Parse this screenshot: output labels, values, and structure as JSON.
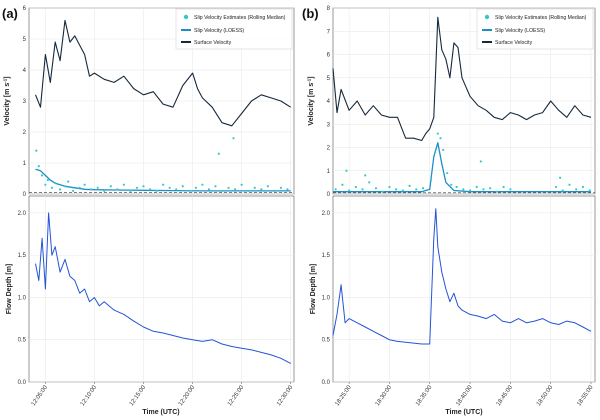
{
  "panels": [
    {
      "label": "(a)",
      "velocity_ylabel_main": "Velocity [m s",
      "velocity_ylabel_sup": "-1",
      "velocity_ylabel_end": "]",
      "depth_ylabel": "Flow Depth [m]",
      "xlabel": "Time (UTC)",
      "xticks": [
        "12:05:00",
        "12:10:00",
        "12:15:00",
        "12:20:00",
        "12:25:00",
        "12:30:00"
      ],
      "legend": [
        "Slip Velocity Estimates (Rolling Median)",
        "Slip Velocity (LOESS)",
        "Surface Velocity"
      ]
    },
    {
      "label": "(b)",
      "velocity_ylabel_main": "Velocity [m s",
      "velocity_ylabel_sup": "-1",
      "velocity_ylabel_end": "]",
      "depth_ylabel": "Flow Depth [m]",
      "xlabel": "Time (UTC)",
      "xticks": [
        "18:25:00",
        "18:30:00",
        "18:35:00",
        "18:40:00",
        "18:45:00",
        "18:50:00",
        "18:55:00"
      ],
      "legend": [
        "Slip Velocity Estimates (Rolling Median)",
        "Slip Velocity (LOESS)",
        "Surface Velocity"
      ]
    }
  ],
  "colors": {
    "surface": "#15293d",
    "loess": "#1f8ec8",
    "scatter": "#33c9c9",
    "depth": "#2255d6",
    "grid": "#e6e6e6",
    "dashed": "#333333"
  },
  "chart_data": [
    {
      "type": "line",
      "panel": "(a)",
      "xlabel": "",
      "ylabel": "Velocity [m s-1]",
      "ylim": [
        0,
        6
      ],
      "yticks": [
        0,
        1,
        2,
        3,
        4,
        5,
        6
      ],
      "xlim": [
        "12:03:20",
        "12:30:20"
      ],
      "grid": true,
      "legend_position": "top-right",
      "dashed_reference_y": 0.05,
      "series": [
        {
          "name": "Surface Velocity",
          "x": [
            "12:04:00",
            "12:04:30",
            "12:05:00",
            "12:05:30",
            "12:06:00",
            "12:06:30",
            "12:07:00",
            "12:07:30",
            "12:08:00",
            "12:08:30",
            "12:09:00",
            "12:09:30",
            "12:10:00",
            "12:11:00",
            "12:12:00",
            "12:13:00",
            "12:14:00",
            "12:15:00",
            "12:16:00",
            "12:17:00",
            "12:18:00",
            "12:19:00",
            "12:20:00",
            "12:20:30",
            "12:21:00",
            "12:22:00",
            "12:23:00",
            "12:24:00",
            "12:25:00",
            "12:26:00",
            "12:27:00",
            "12:28:00",
            "12:29:00",
            "12:30:00"
          ],
          "values": [
            3.2,
            2.8,
            4.5,
            3.6,
            4.9,
            4.3,
            5.6,
            4.9,
            5.1,
            4.8,
            4.5,
            3.8,
            3.9,
            3.7,
            3.6,
            3.8,
            3.4,
            3.2,
            3.3,
            2.9,
            2.8,
            3.5,
            3.9,
            3.4,
            3.1,
            2.8,
            2.3,
            2.2,
            2.6,
            3.0,
            3.2,
            3.1,
            3.0,
            2.8
          ]
        },
        {
          "name": "Slip Velocity (LOESS)",
          "x": [
            "12:04:00",
            "12:04:30",
            "12:05:00",
            "12:05:30",
            "12:06:00",
            "12:07:00",
            "12:08:00",
            "12:09:00",
            "12:10:00",
            "12:12:00",
            "12:15:00",
            "12:18:00",
            "12:21:00",
            "12:24:00",
            "12:27:00",
            "12:30:00"
          ],
          "values": [
            0.8,
            0.75,
            0.6,
            0.45,
            0.35,
            0.25,
            0.2,
            0.15,
            0.14,
            0.13,
            0.12,
            0.11,
            0.1,
            0.1,
            0.1,
            0.1
          ]
        },
        {
          "name": "Slip Velocity Estimates (Rolling Median)",
          "x": [
            "12:04:05",
            "12:04:20",
            "12:04:40",
            "12:05:00",
            "12:05:15",
            "12:05:40",
            "12:06:00",
            "12:06:30",
            "12:07:00",
            "12:07:20",
            "12:07:50",
            "12:08:30",
            "12:09:00",
            "12:09:40",
            "12:10:20",
            "12:11:00",
            "12:11:40",
            "12:12:20",
            "12:13:00",
            "12:13:40",
            "12:14:20",
            "12:15:00",
            "12:15:40",
            "12:16:20",
            "12:17:00",
            "12:17:40",
            "12:18:20",
            "12:19:00",
            "12:19:40",
            "12:20:20",
            "12:21:00",
            "12:21:40",
            "12:22:20",
            "12:23:00",
            "12:23:40",
            "12:24:20",
            "12:25:00",
            "12:25:40",
            "12:26:20",
            "12:27:00",
            "12:27:40",
            "12:28:20",
            "12:29:00",
            "12:29:40",
            "12:22:40",
            "12:24:10"
          ],
          "values": [
            1.4,
            0.9,
            0.6,
            0.3,
            0.45,
            0.2,
            0.35,
            0.15,
            0.25,
            0.4,
            0.1,
            0.2,
            0.3,
            0.15,
            0.2,
            0.1,
            0.25,
            0.15,
            0.3,
            0.1,
            0.2,
            0.25,
            0.15,
            0.1,
            0.3,
            0.2,
            0.15,
            0.25,
            0.1,
            0.2,
            0.3,
            0.15,
            0.25,
            0.1,
            0.2,
            0.15,
            0.3,
            0.1,
            0.2,
            0.15,
            0.25,
            0.1,
            0.2,
            0.15,
            1.3,
            1.8
          ]
        }
      ]
    },
    {
      "type": "line",
      "panel": "(a)",
      "xlabel": "Time (UTC)",
      "ylabel": "Flow Depth [m]",
      "ylim": [
        0,
        2.2
      ],
      "yticks": [
        0.0,
        0.5,
        1.0,
        1.5,
        2.0
      ],
      "xlim": [
        "12:03:20",
        "12:30:20"
      ],
      "grid": true,
      "series": [
        {
          "name": "",
          "x": [
            "12:04:00",
            "12:04:20",
            "12:04:40",
            "12:05:00",
            "12:05:20",
            "12:05:40",
            "12:06:00",
            "12:06:30",
            "12:07:00",
            "12:07:30",
            "12:08:00",
            "12:08:30",
            "12:09:00",
            "12:09:30",
            "12:10:00",
            "12:10:30",
            "12:11:00",
            "12:12:00",
            "12:13:00",
            "12:14:00",
            "12:15:00",
            "12:16:00",
            "12:17:00",
            "12:18:00",
            "12:19:00",
            "12:20:00",
            "12:21:00",
            "12:22:00",
            "12:23:00",
            "12:24:00",
            "12:25:00",
            "12:26:00",
            "12:27:00",
            "12:28:00",
            "12:29:00",
            "12:30:00"
          ],
          "values": [
            1.4,
            1.2,
            1.7,
            1.1,
            2.0,
            1.5,
            1.6,
            1.3,
            1.45,
            1.25,
            1.2,
            1.05,
            1.1,
            0.95,
            1.0,
            0.9,
            0.95,
            0.85,
            0.8,
            0.72,
            0.65,
            0.6,
            0.58,
            0.55,
            0.52,
            0.5,
            0.48,
            0.5,
            0.45,
            0.42,
            0.4,
            0.38,
            0.35,
            0.32,
            0.28,
            0.22
          ]
        }
      ]
    },
    {
      "type": "line",
      "panel": "(b)",
      "xlabel": "",
      "ylabel": "Velocity [m s-1]",
      "ylim": [
        0,
        8
      ],
      "yticks": [
        0,
        1,
        2,
        3,
        4,
        5,
        6,
        7,
        8
      ],
      "xlim": [
        "18:23:00",
        "18:55:30"
      ],
      "grid": true,
      "legend_position": "top-right",
      "dashed_reference_y": 0.05,
      "series": [
        {
          "name": "Surface Velocity",
          "x": [
            "18:23:00",
            "18:23:30",
            "18:24:00",
            "18:25:00",
            "18:26:00",
            "18:27:00",
            "18:28:00",
            "18:29:00",
            "18:30:00",
            "18:31:00",
            "18:32:00",
            "18:33:00",
            "18:34:00",
            "18:34:30",
            "18:35:00",
            "18:35:30",
            "18:36:00",
            "18:36:30",
            "18:37:00",
            "18:37:30",
            "18:38:00",
            "18:38:30",
            "18:39:00",
            "18:40:00",
            "18:41:00",
            "18:42:00",
            "18:43:00",
            "18:44:00",
            "18:45:00",
            "18:46:00",
            "18:47:00",
            "18:48:00",
            "18:49:00",
            "18:50:00",
            "18:51:00",
            "18:52:00",
            "18:53:00",
            "18:54:00",
            "18:55:00"
          ],
          "values": [
            5.4,
            3.5,
            4.5,
            3.6,
            4.0,
            3.4,
            3.8,
            3.4,
            3.3,
            3.3,
            2.4,
            2.4,
            2.3,
            2.6,
            2.8,
            3.3,
            7.6,
            6.2,
            5.8,
            5.0,
            6.5,
            6.3,
            5.0,
            4.2,
            3.8,
            3.6,
            3.3,
            3.2,
            3.5,
            3.4,
            3.2,
            3.4,
            3.5,
            4.0,
            3.6,
            3.3,
            3.8,
            3.4,
            3.3
          ]
        },
        {
          "name": "Slip Velocity (LOESS)",
          "x": [
            "18:23:00",
            "18:26:00",
            "18:30:00",
            "18:34:00",
            "18:35:00",
            "18:35:30",
            "18:36:00",
            "18:36:30",
            "18:37:00",
            "18:38:00",
            "18:40:00",
            "18:45:00",
            "18:50:00",
            "18:55:00"
          ],
          "values": [
            0.1,
            0.1,
            0.1,
            0.1,
            0.2,
            1.6,
            2.2,
            1.3,
            0.5,
            0.15,
            0.1,
            0.1,
            0.1,
            0.1
          ]
        },
        {
          "name": "Slip Velocity Estimates (Rolling Median)",
          "x": [
            "18:23:20",
            "18:24:10",
            "18:25:00",
            "18:25:50",
            "18:26:40",
            "18:27:30",
            "18:28:20",
            "18:29:10",
            "18:30:00",
            "18:30:50",
            "18:31:40",
            "18:32:30",
            "18:33:20",
            "18:34:10",
            "18:35:10",
            "18:35:40",
            "18:36:00",
            "18:36:20",
            "18:36:40",
            "18:37:10",
            "18:37:40",
            "18:38:20",
            "18:39:10",
            "18:40:00",
            "18:40:50",
            "18:41:40",
            "18:42:30",
            "18:43:20",
            "18:44:10",
            "18:45:00",
            "18:50:40",
            "18:51:30",
            "18:52:20",
            "18:53:10",
            "18:54:00",
            "18:54:50",
            "18:24:40",
            "18:27:00",
            "18:41:20",
            "18:51:10"
          ],
          "values": [
            0.2,
            0.4,
            0.15,
            0.3,
            0.2,
            0.5,
            0.25,
            0.1,
            0.3,
            0.2,
            0.15,
            0.35,
            0.2,
            0.25,
            0.6,
            1.8,
            2.6,
            2.4,
            1.9,
            0.9,
            0.4,
            0.3,
            0.2,
            0.15,
            0.3,
            0.2,
            0.25,
            0.1,
            0.3,
            0.2,
            0.3,
            0.15,
            0.4,
            0.2,
            0.3,
            0.15,
            1.0,
            0.8,
            1.4,
            0.7
          ]
        }
      ]
    },
    {
      "type": "line",
      "panel": "(b)",
      "xlabel": "Time (UTC)",
      "ylabel": "Flow Depth [m]",
      "ylim": [
        0,
        2.2
      ],
      "yticks": [
        0.0,
        0.5,
        1.0,
        1.5,
        2.0
      ],
      "xlim": [
        "18:23:00",
        "18:55:30"
      ],
      "grid": true,
      "series": [
        {
          "name": "",
          "x": [
            "18:23:00",
            "18:23:30",
            "18:24:00",
            "18:24:30",
            "18:25:00",
            "18:26:00",
            "18:27:00",
            "18:28:00",
            "18:29:00",
            "18:30:00",
            "18:31:00",
            "18:32:00",
            "18:33:00",
            "18:34:00",
            "18:35:00",
            "18:35:30",
            "18:35:45",
            "18:36:00",
            "18:36:30",
            "18:37:00",
            "18:37:30",
            "18:38:00",
            "18:38:30",
            "18:39:00",
            "18:40:00",
            "18:41:00",
            "18:42:00",
            "18:43:00",
            "18:44:00",
            "18:45:00",
            "18:46:00",
            "18:47:00",
            "18:48:00",
            "18:49:00",
            "18:50:00",
            "18:51:00",
            "18:52:00",
            "18:53:00",
            "18:54:00",
            "18:55:00"
          ],
          "values": [
            0.55,
            0.8,
            1.15,
            0.7,
            0.75,
            0.7,
            0.65,
            0.6,
            0.55,
            0.5,
            0.48,
            0.47,
            0.46,
            0.45,
            0.45,
            1.7,
            2.05,
            1.6,
            1.3,
            1.1,
            0.95,
            1.05,
            0.9,
            0.85,
            0.8,
            0.78,
            0.75,
            0.8,
            0.72,
            0.7,
            0.75,
            0.7,
            0.72,
            0.75,
            0.7,
            0.68,
            0.72,
            0.7,
            0.65,
            0.6
          ]
        }
      ]
    }
  ]
}
